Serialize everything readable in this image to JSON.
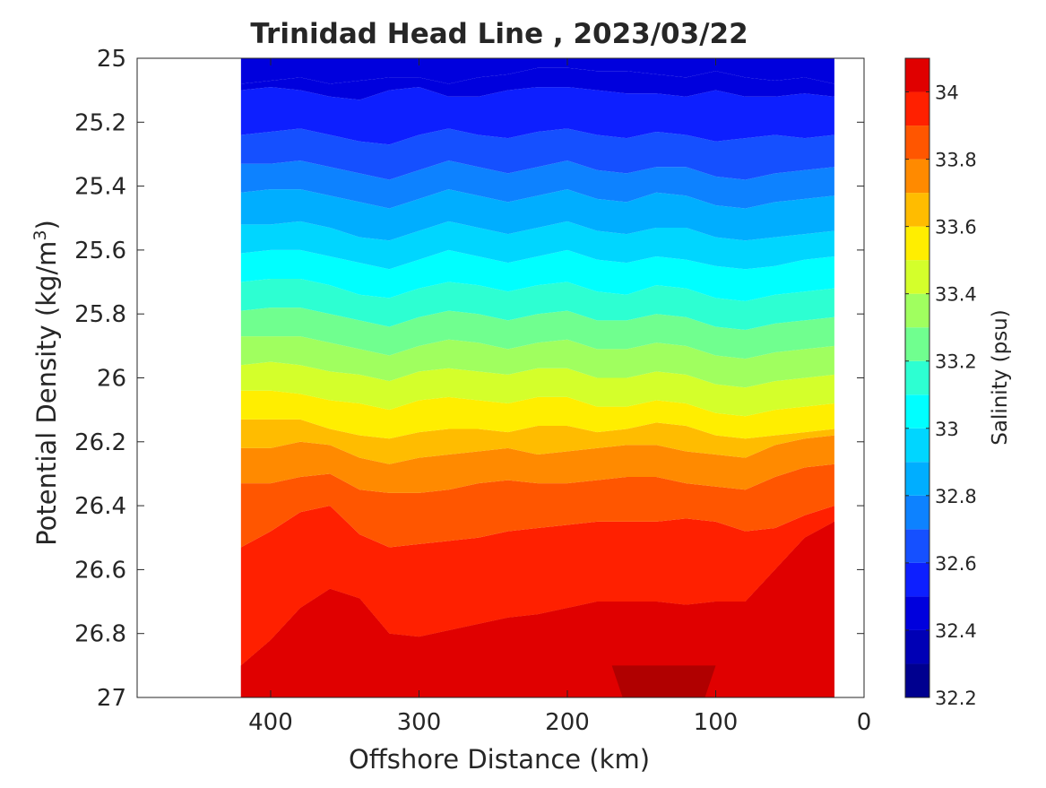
{
  "chart_data": {
    "type": "contour",
    "title": "Trinidad Head Line , 2023/03/22",
    "xlabel": "Offshore Distance (km)",
    "ylabel_main": "Potential Density (kg/m",
    "ylabel_sup": "3",
    "ylabel_close": ")",
    "colorbar_label": "Salinity (psu)",
    "x_axis": {
      "min": 0,
      "max": 490,
      "reversed": true,
      "ticks": [
        400,
        300,
        200,
        100,
        0
      ]
    },
    "y_axis": {
      "min": 25,
      "max": 27,
      "reversed": true,
      "ticks": [
        "25",
        "25.2",
        "25.4",
        "25.6",
        "25.8",
        "26",
        "26.2",
        "26.4",
        "26.6",
        "26.8",
        "27"
      ]
    },
    "colorbar": {
      "min": 32.2,
      "max": 34.1,
      "tick_labels": [
        "32.2",
        "32.4",
        "32.6",
        "32.8",
        "33",
        "33.2",
        "33.4",
        "33.6",
        "33.8",
        "34"
      ],
      "levels": [
        32.2,
        32.3,
        32.4,
        32.5,
        32.6,
        32.7,
        32.8,
        32.9,
        33.0,
        33.1,
        33.2,
        33.3,
        33.4,
        33.5,
        33.6,
        33.7,
        33.8,
        33.9,
        34.0,
        34.1
      ],
      "colors": [
        "#00008f",
        "#0000b5",
        "#0000dd",
        "#0d1fff",
        "#1550ff",
        "#0d82ff",
        "#00aeff",
        "#00d6ff",
        "#00ffff",
        "#2dffd2",
        "#70ff8f",
        "#a0ff5f",
        "#d4ff2b",
        "#ffee00",
        "#ffbc00",
        "#ff8a00",
        "#ff5600",
        "#ff2000",
        "#e00000",
        "#b00000",
        "#820000"
      ]
    },
    "section_extent_km": [
      20,
      420
    ],
    "salinity_contour_levels": [
      32.4,
      32.5,
      32.6,
      32.7,
      32.8,
      32.9,
      33.0,
      33.1,
      33.2,
      33.3,
      33.4,
      33.5,
      33.6,
      33.7,
      33.8,
      33.9,
      34.0,
      34.1
    ],
    "contour_depths": {
      "x_km": [
        420,
        400,
        380,
        360,
        340,
        320,
        300,
        280,
        260,
        240,
        220,
        200,
        180,
        160,
        140,
        120,
        100,
        80,
        60,
        40,
        20
      ],
      "isohalines": [
        {
          "level": 32.4,
          "sigma": [
            25.08,
            25.07,
            25.06,
            25.08,
            25.07,
            25.06,
            25.06,
            25.08,
            25.06,
            25.05,
            25.03,
            25.03,
            25.04,
            25.04,
            25.05,
            25.06,
            25.04,
            25.06,
            25.07,
            25.06,
            25.08
          ]
        },
        {
          "level": 32.5,
          "sigma": [
            25.1,
            25.09,
            25.1,
            25.12,
            25.13,
            25.1,
            25.09,
            25.12,
            25.12,
            25.1,
            25.09,
            25.09,
            25.1,
            25.11,
            25.11,
            25.12,
            25.1,
            25.12,
            25.12,
            25.11,
            25.12
          ]
        },
        {
          "level": 32.6,
          "sigma": [
            25.24,
            25.23,
            25.22,
            25.24,
            25.26,
            25.27,
            25.24,
            25.22,
            25.24,
            25.25,
            25.23,
            25.22,
            25.24,
            25.25,
            25.23,
            25.24,
            25.26,
            25.25,
            25.24,
            25.25,
            25.24
          ]
        },
        {
          "level": 32.7,
          "sigma": [
            25.33,
            25.33,
            25.32,
            25.34,
            25.36,
            25.38,
            25.35,
            25.32,
            25.34,
            25.36,
            25.34,
            25.32,
            25.35,
            25.36,
            25.34,
            25.34,
            25.37,
            25.38,
            25.36,
            25.35,
            25.34
          ]
        },
        {
          "level": 32.8,
          "sigma": [
            25.42,
            25.41,
            25.41,
            25.43,
            25.45,
            25.47,
            25.44,
            25.41,
            25.43,
            25.45,
            25.43,
            25.41,
            25.44,
            25.45,
            25.42,
            25.43,
            25.46,
            25.47,
            25.45,
            25.44,
            25.43
          ]
        },
        {
          "level": 32.9,
          "sigma": [
            25.52,
            25.52,
            25.51,
            25.53,
            25.56,
            25.57,
            25.54,
            25.51,
            25.53,
            25.55,
            25.53,
            25.51,
            25.54,
            25.55,
            25.53,
            25.53,
            25.56,
            25.57,
            25.56,
            25.55,
            25.54
          ]
        },
        {
          "level": 33.0,
          "sigma": [
            25.61,
            25.6,
            25.6,
            25.62,
            25.64,
            25.66,
            25.63,
            25.6,
            25.62,
            25.64,
            25.62,
            25.6,
            25.63,
            25.64,
            25.62,
            25.63,
            25.65,
            25.66,
            25.65,
            25.63,
            25.62
          ]
        },
        {
          "level": 33.1,
          "sigma": [
            25.7,
            25.69,
            25.69,
            25.71,
            25.74,
            25.75,
            25.72,
            25.7,
            25.71,
            25.73,
            25.71,
            25.7,
            25.73,
            25.74,
            25.71,
            25.72,
            25.75,
            25.76,
            25.74,
            25.73,
            25.72
          ]
        },
        {
          "level": 33.2,
          "sigma": [
            25.79,
            25.78,
            25.78,
            25.8,
            25.82,
            25.84,
            25.81,
            25.79,
            25.8,
            25.82,
            25.8,
            25.79,
            25.82,
            25.82,
            25.8,
            25.81,
            25.84,
            25.85,
            25.83,
            25.82,
            25.81
          ]
        },
        {
          "level": 33.3,
          "sigma": [
            25.87,
            25.87,
            25.87,
            25.89,
            25.91,
            25.93,
            25.9,
            25.88,
            25.89,
            25.91,
            25.89,
            25.88,
            25.91,
            25.91,
            25.89,
            25.9,
            25.93,
            25.94,
            25.92,
            25.91,
            25.9
          ]
        },
        {
          "level": 33.4,
          "sigma": [
            25.96,
            25.95,
            25.96,
            25.98,
            25.99,
            26.01,
            25.98,
            25.97,
            25.98,
            25.99,
            25.97,
            25.97,
            26.0,
            26.0,
            25.98,
            25.99,
            26.02,
            26.03,
            26.01,
            26.0,
            25.99
          ]
        },
        {
          "level": 33.5,
          "sigma": [
            26.04,
            26.04,
            26.05,
            26.07,
            26.08,
            26.1,
            26.07,
            26.06,
            26.07,
            26.08,
            26.06,
            26.06,
            26.09,
            26.09,
            26.07,
            26.08,
            26.11,
            26.12,
            26.1,
            26.09,
            26.08
          ]
        },
        {
          "level": 33.6,
          "sigma": [
            26.13,
            26.13,
            26.13,
            26.16,
            26.18,
            26.19,
            26.17,
            26.16,
            26.16,
            26.17,
            26.15,
            26.15,
            26.17,
            26.16,
            26.14,
            26.15,
            26.18,
            26.19,
            26.18,
            26.17,
            26.16
          ]
        },
        {
          "level": 33.7,
          "sigma": [
            26.22,
            26.22,
            26.2,
            26.21,
            26.25,
            26.27,
            26.25,
            26.24,
            26.23,
            26.22,
            26.24,
            26.23,
            26.22,
            26.21,
            26.21,
            26.23,
            26.24,
            26.25,
            26.21,
            26.19,
            26.18
          ]
        },
        {
          "level": 33.8,
          "sigma": [
            26.33,
            26.33,
            26.31,
            26.3,
            26.35,
            26.36,
            26.36,
            26.35,
            26.33,
            26.32,
            26.33,
            26.33,
            26.32,
            26.31,
            26.31,
            26.33,
            26.34,
            26.35,
            26.31,
            26.28,
            26.27
          ]
        },
        {
          "level": 33.9,
          "sigma": [
            26.53,
            26.48,
            26.42,
            26.4,
            26.49,
            26.53,
            26.52,
            26.51,
            26.5,
            26.48,
            26.47,
            26.46,
            26.45,
            26.45,
            26.45,
            26.44,
            26.45,
            26.48,
            26.47,
            26.43,
            26.4
          ]
        },
        {
          "level": 34.0,
          "sigma": [
            26.9,
            26.82,
            26.72,
            26.66,
            26.69,
            26.8,
            26.81,
            26.79,
            26.77,
            26.75,
            26.74,
            26.72,
            26.7,
            26.7,
            26.7,
            26.71,
            26.7,
            26.7,
            26.6,
            26.5,
            26.45
          ]
        }
      ]
    },
    "deepest_water_patch": {
      "level": 34.1,
      "x_km": [
        170,
        100
      ],
      "sigma_top": 26.9
    }
  }
}
